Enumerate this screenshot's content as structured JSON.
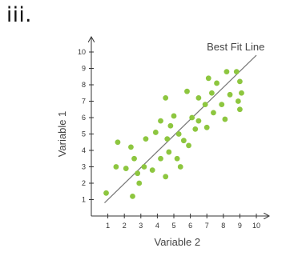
{
  "panel_label": "iii.",
  "chart_data": {
    "type": "scatter",
    "title": "",
    "xlabel": "Variable 2",
    "ylabel": "Variable 1",
    "xlim": [
      0,
      10
    ],
    "ylim": [
      0,
      10
    ],
    "x_ticks": [
      "1",
      "2",
      "3",
      "4",
      "5",
      "6",
      "7",
      "8",
      "9",
      "10"
    ],
    "y_ticks": [
      "1",
      "2",
      "3",
      "4",
      "5",
      "6",
      "7",
      "8",
      "9",
      "10"
    ],
    "grid": false,
    "colors": {
      "points": "#8dc63f",
      "fit_line": "#777777",
      "axes": "#333333"
    },
    "fit_line": {
      "label": "Best Fit Line",
      "x": [
        0.8,
        10.0
      ],
      "y": [
        0.8,
        9.8
      ]
    },
    "points": [
      {
        "x": 0.9,
        "y": 1.4
      },
      {
        "x": 1.6,
        "y": 4.5
      },
      {
        "x": 1.5,
        "y": 3.0
      },
      {
        "x": 2.1,
        "y": 2.9
      },
      {
        "x": 2.4,
        "y": 4.2
      },
      {
        "x": 2.5,
        "y": 1.2
      },
      {
        "x": 2.6,
        "y": 3.5
      },
      {
        "x": 2.8,
        "y": 2.6
      },
      {
        "x": 2.9,
        "y": 2.0
      },
      {
        "x": 3.2,
        "y": 3.0
      },
      {
        "x": 3.3,
        "y": 4.7
      },
      {
        "x": 3.7,
        "y": 2.8
      },
      {
        "x": 3.9,
        "y": 5.1
      },
      {
        "x": 4.2,
        "y": 5.8
      },
      {
        "x": 4.2,
        "y": 3.5
      },
      {
        "x": 4.5,
        "y": 2.4
      },
      {
        "x": 4.5,
        "y": 7.2
      },
      {
        "x": 4.6,
        "y": 4.7
      },
      {
        "x": 4.7,
        "y": 3.9
      },
      {
        "x": 4.8,
        "y": 5.5
      },
      {
        "x": 5.0,
        "y": 6.1
      },
      {
        "x": 5.2,
        "y": 3.5
      },
      {
        "x": 5.3,
        "y": 5.0
      },
      {
        "x": 5.4,
        "y": 3.0
      },
      {
        "x": 5.6,
        "y": 4.6
      },
      {
        "x": 5.8,
        "y": 7.6
      },
      {
        "x": 5.9,
        "y": 4.3
      },
      {
        "x": 6.1,
        "y": 6.0
      },
      {
        "x": 6.3,
        "y": 5.3
      },
      {
        "x": 6.5,
        "y": 7.2
      },
      {
        "x": 6.5,
        "y": 5.8
      },
      {
        "x": 6.9,
        "y": 6.8
      },
      {
        "x": 7.0,
        "y": 5.4
      },
      {
        "x": 7.1,
        "y": 8.4
      },
      {
        "x": 7.3,
        "y": 7.5
      },
      {
        "x": 7.4,
        "y": 6.3
      },
      {
        "x": 7.6,
        "y": 8.1
      },
      {
        "x": 7.9,
        "y": 6.8
      },
      {
        "x": 8.1,
        "y": 5.9
      },
      {
        "x": 8.2,
        "y": 8.8
      },
      {
        "x": 8.4,
        "y": 7.4
      },
      {
        "x": 8.8,
        "y": 8.8
      },
      {
        "x": 9.0,
        "y": 8.2
      },
      {
        "x": 8.9,
        "y": 7.0
      },
      {
        "x": 9.0,
        "y": 6.5
      },
      {
        "x": 9.1,
        "y": 7.5
      }
    ]
  }
}
